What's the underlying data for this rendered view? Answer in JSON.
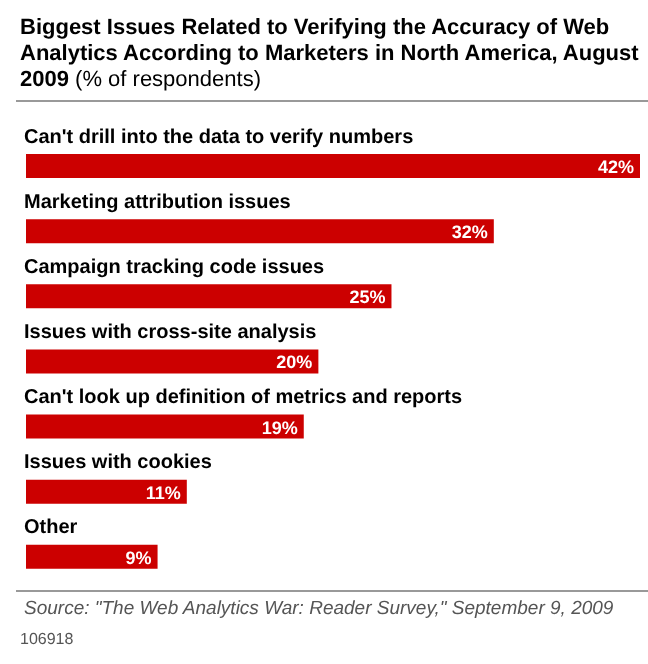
{
  "chart_data": {
    "type": "bar",
    "orientation": "horizontal",
    "title": "Biggest Issues Related to Verifying the Accuracy of Web Analytics According to Marketers in North America, August 2009",
    "subtitle": "(% of respondents)",
    "categories": [
      "Can't drill into the data to verify numbers",
      "Marketing attribution issues",
      "Campaign tracking code issues",
      "Issues with cross-site analysis",
      "Can't look up definition of metrics and reports",
      "Issues with cookies",
      "Other"
    ],
    "values": [
      42,
      32,
      25,
      20,
      19,
      11,
      9
    ],
    "value_labels": [
      "42%",
      "32%",
      "25%",
      "20%",
      "19%",
      "11%",
      "9%"
    ],
    "color": "#cc0000",
    "annotations": [
      "Source: \"The Web Analytics War: Reader Survey,\" September 9, 2009",
      "106918"
    ]
  }
}
